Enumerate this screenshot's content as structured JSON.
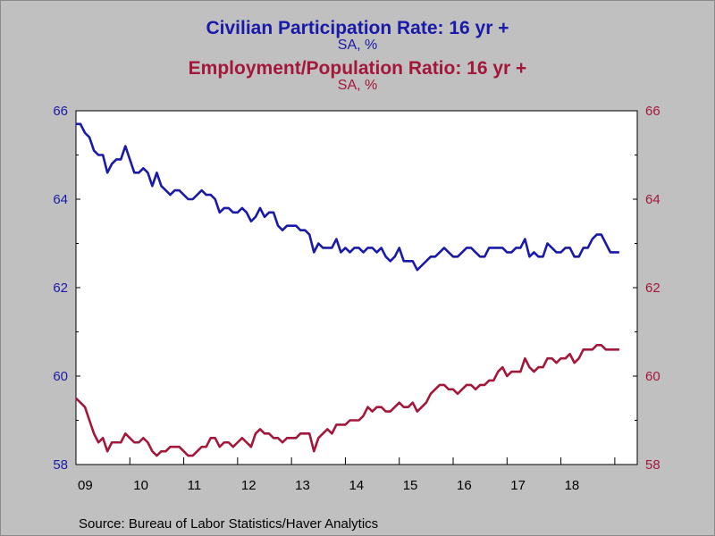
{
  "chart_data": {
    "type": "line",
    "titles": [
      {
        "title": "Civilian Participation Rate: 16 yr +",
        "subtitle": "SA, %",
        "color": "#1a1aa8"
      },
      {
        "title": "Employment/Population Ratio: 16 yr +",
        "subtitle": "SA, %",
        "color": "#a3173a"
      }
    ],
    "x_labels": [
      "09",
      "10",
      "11",
      "12",
      "13",
      "14",
      "15",
      "16",
      "17",
      "18"
    ],
    "left_axis": {
      "ylim": [
        58,
        66
      ],
      "ticks": [
        "58",
        "60",
        "62",
        "64",
        "66"
      ],
      "color": "#1a1aa8"
    },
    "right_axis": {
      "ylim": [
        58,
        66
      ],
      "ticks": [
        "58",
        "60",
        "62",
        "64",
        "66"
      ],
      "color": "#a3173a"
    },
    "x_range": [
      "2009-01",
      "2019-06"
    ],
    "grid": false,
    "series": [
      {
        "color": "#1a1aa8",
        "axis": "left",
        "start": "2009-01",
        "frequency": "monthly",
        "values": [
          65.7,
          65.7,
          65.5,
          65.4,
          65.1,
          65.0,
          65.0,
          64.6,
          64.8,
          64.9,
          64.9,
          65.2,
          64.9,
          64.6,
          64.6,
          64.7,
          64.6,
          64.3,
          64.6,
          64.3,
          64.2,
          64.1,
          64.2,
          64.2,
          64.1,
          64.0,
          64.0,
          64.1,
          64.2,
          64.1,
          64.1,
          64.0,
          63.7,
          63.8,
          63.8,
          63.7,
          63.7,
          63.8,
          63.7,
          63.5,
          63.6,
          63.8,
          63.6,
          63.7,
          63.7,
          63.4,
          63.3,
          63.4,
          63.4,
          63.4,
          63.3,
          63.3,
          63.2,
          62.8,
          63.0,
          62.9,
          62.9,
          62.9,
          63.1,
          62.8,
          62.9,
          62.8,
          62.9,
          62.9,
          62.8,
          62.9,
          62.9,
          62.8,
          62.9,
          62.7,
          62.6,
          62.7,
          62.9,
          62.6,
          62.6,
          62.6,
          62.4,
          62.5,
          62.6,
          62.7,
          62.7,
          62.8,
          62.9,
          62.8,
          62.7,
          62.7,
          62.8,
          62.9,
          62.9,
          62.8,
          62.7,
          62.7,
          62.9,
          62.9,
          62.9,
          62.9,
          62.8,
          62.8,
          62.9,
          62.9,
          63.1,
          62.7,
          62.8,
          62.7,
          62.7,
          63.0,
          62.9,
          62.8,
          62.8,
          62.9,
          62.9,
          62.7,
          62.7,
          62.9,
          62.9,
          63.1,
          63.2,
          63.2,
          63.0,
          62.8,
          62.8,
          62.8
        ]
      },
      {
        "color": "#a3173a",
        "axis": "right",
        "start": "2009-01",
        "frequency": "monthly",
        "values": [
          59.5,
          59.4,
          59.3,
          59.0,
          58.7,
          58.5,
          58.6,
          58.3,
          58.5,
          58.5,
          58.5,
          58.7,
          58.6,
          58.5,
          58.5,
          58.6,
          58.5,
          58.3,
          58.2,
          58.3,
          58.3,
          58.4,
          58.4,
          58.4,
          58.3,
          58.2,
          58.2,
          58.3,
          58.4,
          58.4,
          58.6,
          58.6,
          58.4,
          58.5,
          58.5,
          58.4,
          58.5,
          58.6,
          58.5,
          58.4,
          58.7,
          58.8,
          58.7,
          58.7,
          58.6,
          58.6,
          58.5,
          58.6,
          58.6,
          58.6,
          58.7,
          58.7,
          58.7,
          58.3,
          58.6,
          58.7,
          58.8,
          58.7,
          58.9,
          58.9,
          58.9,
          59.0,
          59.0,
          59.0,
          59.1,
          59.3,
          59.2,
          59.3,
          59.3,
          59.2,
          59.2,
          59.3,
          59.4,
          59.3,
          59.3,
          59.4,
          59.2,
          59.3,
          59.4,
          59.6,
          59.7,
          59.8,
          59.8,
          59.7,
          59.7,
          59.6,
          59.7,
          59.8,
          59.8,
          59.7,
          59.8,
          59.8,
          59.9,
          59.9,
          60.1,
          60.2,
          60.0,
          60.1,
          60.1,
          60.1,
          60.4,
          60.2,
          60.1,
          60.2,
          60.2,
          60.4,
          60.4,
          60.3,
          60.4,
          60.4,
          60.5,
          60.3,
          60.4,
          60.6,
          60.6,
          60.6,
          60.7,
          60.7,
          60.6,
          60.6,
          60.6,
          60.6
        ]
      }
    ]
  },
  "source": "Source:  Bureau of Labor Statistics/Haver Analytics"
}
